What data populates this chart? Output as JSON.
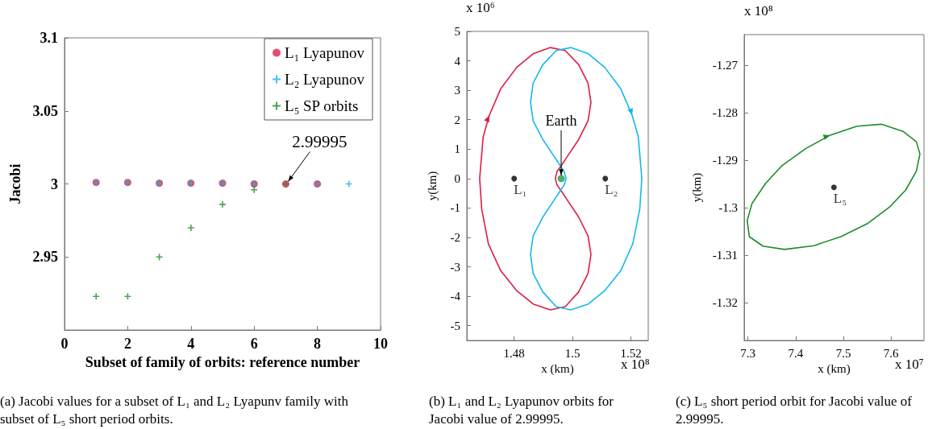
{
  "chart_data": [
    {
      "type": "scatter",
      "title": "(a) Jacobi values for a subset of L₁ and L₂ Lyapunv family with subset of L₅ short period orbits.",
      "xlabel": "Subset of family of orbits: reference number",
      "ylabel": "Jacobi",
      "xlim": [
        0,
        10
      ],
      "xticks": [
        0,
        2,
        4,
        6,
        8,
        10
      ],
      "ylim": [
        2.9,
        3.1
      ],
      "yticks": [
        2.95,
        3,
        3.05,
        3.1
      ],
      "legend": "top right",
      "annotations": [
        {
          "text": "2.99995",
          "x": 7,
          "y": 3.0
        }
      ],
      "series": [
        {
          "name": "L₁ Lyapunov",
          "color": "#e0204a",
          "marker": "circle",
          "x": [
            1,
            2,
            3,
            4,
            5,
            6,
            7,
            8
          ],
          "values": [
            3.001,
            3.001,
            3.0005,
            3.0005,
            3.0005,
            3.0,
            3.0,
            3.0
          ]
        },
        {
          "name": "L₂ Lyapunov",
          "color": "#12b4ee",
          "marker": "cross",
          "x": [
            1,
            2,
            3,
            4,
            5,
            6,
            7,
            8,
            9
          ],
          "values": [
            3.001,
            3.001,
            3.0005,
            3.0005,
            3.0005,
            3.0,
            null,
            3.0,
            3.0
          ]
        },
        {
          "name": "L₅ SP orbits",
          "color": "#1e8c2a",
          "marker": "cross",
          "x": [
            1,
            2,
            3,
            4,
            5,
            6,
            7
          ],
          "values": [
            2.923,
            2.923,
            2.95,
            2.97,
            2.986,
            2.996,
            3.0
          ]
        }
      ]
    },
    {
      "type": "line",
      "title": "(b) L₁ and L₂ Lyapunov orbits for Jacobi value of 2.99995.",
      "xlabel": "x (km)",
      "ylabel": "y(km)",
      "xlim": [
        1.4638,
        1.5259
      ],
      "xticks": [
        1.48,
        1.5,
        1.52
      ],
      "ylim": [
        -5.5,
        5
      ],
      "yticks": [
        -5,
        -4,
        -3,
        -2,
        -1,
        0,
        1,
        2,
        3,
        4,
        5
      ],
      "marker": "none",
      "annotations": [
        {
          "text": "Earth",
          "x": 1.4961,
          "y": 0
        },
        "x 10⁶",
        "x 10⁸"
      ],
      "series": [
        {
          "color": "#dc1e44",
          "x": [
            1.4682,
            1.4694,
            1.4715,
            1.4754,
            1.4809,
            1.4865,
            1.4924,
            1.4975,
            1.5021,
            1.5053,
            1.5063,
            null,
            1.5063,
            1.5053,
            1.5021,
            1.4984,
            1.4966,
            1.4947,
            1.4941,
            null,
            1.4941,
            1.4947,
            1.4966,
            1.4984,
            1.5021,
            1.5053,
            1.5063,
            null,
            1.5063,
            1.5053,
            1.5021,
            1.4975,
            1.4924,
            1.4865,
            1.4809,
            1.4754,
            1.4712,
            1.4689,
            1.4682
          ],
          "values": [
            0,
            1.42,
            2.15,
            3.05,
            3.78,
            4.24,
            4.45,
            4.35,
            3.87,
            3.24,
            2.6,
            null,
            2.6,
            1.96,
            1.33,
            0.78,
            0.51,
            0.24,
            0,
            null,
            0,
            -0.22,
            -0.49,
            -0.76,
            -1.31,
            -1.95,
            -2.58,
            null,
            -2.58,
            -3.22,
            -3.85,
            -4.35,
            -4.46,
            -4.26,
            -3.81,
            -3.13,
            -2.22,
            -1.04,
            0
          ]
        },
        {
          "color": "#12b8f0",
          "x": [
            1.511,
            1.5165,
            1.5204,
            1.5225,
            1.5237,
            null,
            1.5237,
            1.523,
            1.5206,
            1.5165,
            1.511,
            1.5054,
            1.4994,
            1.4944,
            1.4898,
            1.4865,
            1.4856,
            null,
            1.4856,
            1.4865,
            1.4898,
            1.4935,
            1.4953,
            1.4971,
            1.4978,
            null,
            1.4978,
            1.4971,
            1.4953,
            1.4935,
            1.4898,
            1.4865,
            1.4856,
            null,
            1.4856,
            1.4865,
            1.4898,
            1.4944,
            1.4994,
            1.5054,
            1.511
          ],
          "values": [
            3.78,
            3.05,
            2.15,
            1.42,
            0,
            null,
            0,
            -1.04,
            -2.22,
            -3.13,
            -3.81,
            -4.26,
            -4.46,
            -4.35,
            -3.85,
            -3.22,
            -2.58,
            null,
            -2.58,
            -1.95,
            -1.31,
            -0.76,
            -0.49,
            -0.22,
            0,
            null,
            0,
            0.24,
            0.51,
            0.78,
            1.33,
            1.96,
            2.6,
            null,
            2.6,
            3.24,
            3.87,
            4.35,
            4.45,
            4.24,
            3.78
          ]
        },
        {
          "type": "scatter",
          "name": "L₁",
          "color": "#000000",
          "marker": "circle",
          "x": [
            1.48
          ],
          "values": [
            0
          ]
        },
        {
          "type": "scatter",
          "name": "L₂",
          "color": "#000000",
          "marker": "circle",
          "x": [
            1.5112
          ],
          "values": [
            0
          ]
        },
        {
          "type": "scatter",
          "color": "#1a9a50",
          "marker": "circle",
          "x": [
            1.4961
          ],
          "values": [
            0
          ]
        }
      ]
    },
    {
      "type": "line",
      "title": "(c) L₅ short period orbit for Jacobi value of 2.99995.",
      "xlabel": "x (km)",
      "ylabel": "y(km)",
      "xlim": [
        7.292,
        7.669
      ],
      "xticks": [
        7.3,
        7.4,
        7.5,
        7.6
      ],
      "ylim": [
        -1.328,
        -1.2635
      ],
      "yticks": [
        -1.32,
        -1.31,
        -1.3,
        -1.29,
        -1.28,
        -1.27
      ],
      "marker": "none",
      "annotations": [
        "x 10⁸",
        "x 10⁷"
      ],
      "series": [
        {
          "color": "#1e8c2a",
          "x": [
            7.3706,
            7.4215,
            7.4723,
            7.5288,
            7.5797,
            7.6249,
            7.6531,
            7.6605,
            null,
            7.6605,
            7.6531,
            7.6305,
            7.5966,
            7.5514,
            7.4949,
            7.4384,
            7.3763,
            7.3311,
            7.3028,
            7.2983,
            null,
            7.2983,
            7.3085,
            7.3367,
            7.3706
          ],
          "values": [
            -1.2912,
            -1.2875,
            -1.2847,
            -1.2828,
            -1.2824,
            -1.2839,
            -1.2861,
            -1.2887,
            null,
            -1.2887,
            -1.2923,
            -1.2963,
            -1.2999,
            -1.3033,
            -1.3061,
            -1.308,
            -1.3088,
            -1.3081,
            -1.3061,
            -1.3027,
            null,
            -1.3027,
            -1.2991,
            -1.2949,
            -1.2912
          ]
        },
        {
          "type": "scatter",
          "name": "L₅",
          "color": "#000000",
          "marker": "circle",
          "x": [
            7.4802
          ],
          "values": [
            -1.2957
          ]
        }
      ]
    }
  ]
}
